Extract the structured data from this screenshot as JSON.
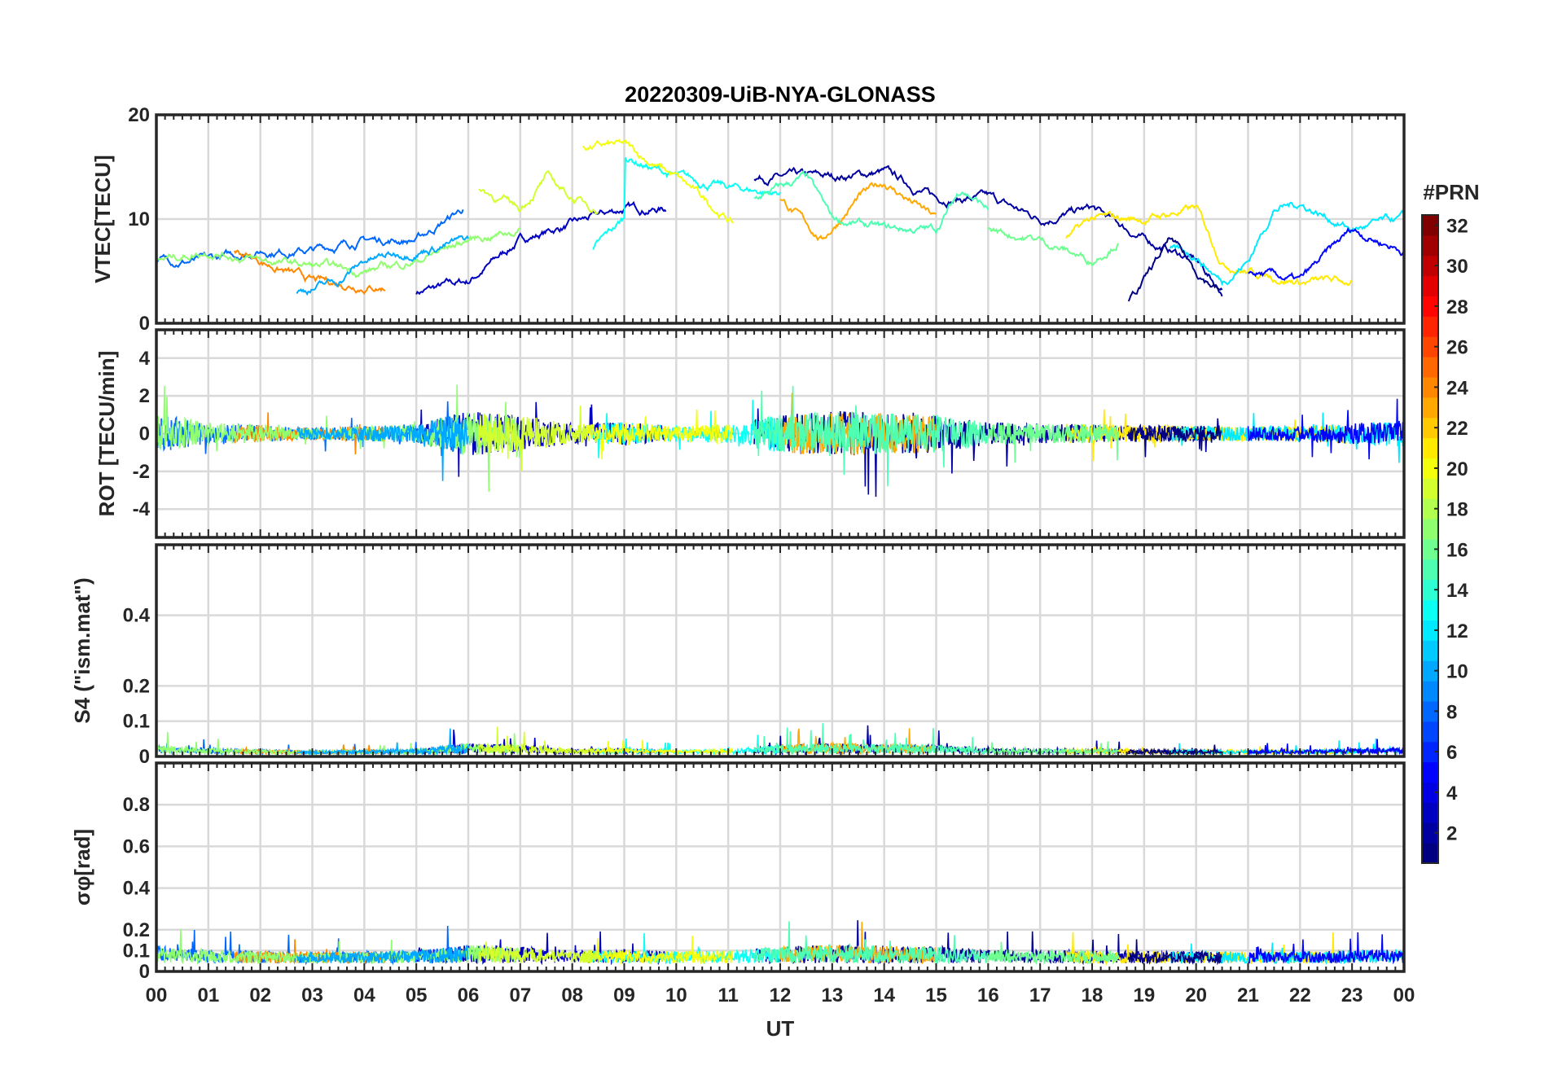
{
  "chart_data": {
    "type": "line",
    "title": "20220309-UiB-NYA-GLONASS",
    "xlabel": "UT",
    "xlim": [
      0,
      24
    ],
    "xtick_labels": [
      "00",
      "01",
      "02",
      "03",
      "04",
      "05",
      "06",
      "07",
      "08",
      "09",
      "10",
      "11",
      "12",
      "13",
      "14",
      "15",
      "16",
      "17",
      "18",
      "19",
      "20",
      "21",
      "22",
      "23",
      "00"
    ],
    "grid": true,
    "colorbar": {
      "label": "#PRN",
      "range": [
        1,
        32
      ],
      "colormap": "jet",
      "tick_labels": [
        "2",
        "4",
        "6",
        "8",
        "10",
        "12",
        "14",
        "16",
        "18",
        "20",
        "22",
        "24",
        "26",
        "28",
        "30",
        "32"
      ],
      "placement": "right"
    },
    "panels": [
      {
        "ylabel": "VTEC[TECU]",
        "ylim": [
          0,
          20
        ],
        "yticks": [
          0,
          10,
          20
        ],
        "ytick_labels": [
          "0",
          "10",
          "20"
        ]
      },
      {
        "ylabel": "ROT [TECU/min]",
        "ylim": [
          -5.5,
          5.5
        ],
        "yticks": [
          -4,
          -2,
          0,
          2,
          4
        ],
        "ytick_labels": [
          "-4",
          "-2",
          "0",
          "2",
          "4"
        ]
      },
      {
        "ylabel": "S4 (\"ism.mat\")",
        "ylim": [
          0,
          0.6
        ],
        "yticks": [
          0,
          0.1,
          0.2,
          0.4
        ],
        "ytick_labels": [
          "0",
          "0.1",
          "0.2",
          "0.4"
        ]
      },
      {
        "ylabel": "σφ[rad]",
        "ylim": [
          0,
          1
        ],
        "yticks": [
          0,
          0.1,
          0.2,
          0.4,
          0.6,
          0.8
        ],
        "ytick_labels": [
          "0",
          "0.1",
          "0.2",
          "0.4",
          "0.6",
          "0.8"
        ]
      }
    ],
    "series": [
      {
        "prn": 3,
        "vtec": [
          [
            5,
            3
          ],
          [
            6,
            4
          ],
          [
            7,
            8
          ],
          [
            8,
            9.5
          ],
          [
            9,
            11
          ],
          [
            9.8,
            11
          ]
        ]
      },
      {
        "prn": 2,
        "vtec": [
          [
            11.5,
            14
          ],
          [
            13,
            14
          ],
          [
            14,
            14.5
          ],
          [
            15,
            12
          ],
          [
            16,
            12
          ],
          [
            17,
            10
          ],
          [
            18,
            11
          ],
          [
            19,
            8
          ],
          [
            20,
            6
          ],
          [
            20.5,
            3
          ]
        ]
      },
      {
        "prn": 8,
        "vtec": [
          [
            0,
            6
          ],
          [
            1,
            6
          ],
          [
            2,
            7
          ],
          [
            3,
            7
          ],
          [
            4,
            8
          ],
          [
            5,
            8
          ],
          [
            5.9,
            11
          ]
        ]
      },
      {
        "prn": 13,
        "vtec": [
          [
            8.4,
            7
          ],
          [
            9,
            10
          ],
          [
            9,
            16
          ],
          [
            10,
            14
          ],
          [
            11,
            13
          ],
          [
            12,
            12.5
          ]
        ]
      },
      {
        "prn": 20,
        "vtec": [
          [
            8.2,
            17
          ],
          [
            9,
            17
          ],
          [
            10,
            14
          ],
          [
            11,
            10
          ],
          [
            11.1,
            9.5
          ]
        ]
      },
      {
        "prn": 24,
        "vtec": [
          [
            1.5,
            7
          ],
          [
            2.5,
            5
          ],
          [
            3,
            4
          ],
          [
            4.4,
            3.5
          ]
        ]
      },
      {
        "prn": 23,
        "vtec": [
          [
            12,
            12
          ],
          [
            12.8,
            8
          ],
          [
            13.5,
            12
          ],
          [
            14,
            13.5
          ],
          [
            15,
            10
          ]
        ]
      },
      {
        "prn": 15,
        "vtec": [
          [
            11.5,
            12
          ],
          [
            12.5,
            14
          ],
          [
            13,
            10
          ],
          [
            14,
            9
          ],
          [
            15,
            9
          ],
          [
            15.5,
            13
          ],
          [
            16,
            11
          ]
        ]
      },
      {
        "prn": 21,
        "vtec": [
          [
            17.5,
            8
          ],
          [
            18,
            10
          ],
          [
            19,
            10
          ],
          [
            20,
            11
          ],
          [
            20.5,
            6
          ],
          [
            21,
            5
          ],
          [
            22,
            4
          ],
          [
            23,
            4
          ]
        ]
      },
      {
        "prn": 12,
        "vtec": [
          [
            19.5,
            7
          ],
          [
            20,
            6.5
          ],
          [
            20.5,
            4
          ],
          [
            21,
            6
          ],
          [
            21.5,
            11
          ],
          [
            22,
            11.5
          ],
          [
            23,
            9
          ],
          [
            24,
            10
          ]
        ]
      },
      {
        "prn": 5,
        "vtec": [
          [
            21,
            5
          ],
          [
            22,
            4
          ],
          [
            23,
            9
          ],
          [
            24,
            7
          ]
        ]
      },
      {
        "prn": 17,
        "vtec": [
          [
            0,
            6
          ],
          [
            1,
            7
          ],
          [
            2,
            6
          ],
          [
            3,
            5.5
          ],
          [
            4,
            5
          ],
          [
            5,
            6
          ],
          [
            6,
            8
          ],
          [
            7,
            9
          ]
        ]
      },
      {
        "prn": 19,
        "vtec": [
          [
            6.2,
            13
          ],
          [
            7,
            11
          ],
          [
            7.5,
            14
          ],
          [
            8,
            12
          ],
          [
            8.5,
            11
          ]
        ]
      },
      {
        "prn": 10,
        "vtec": [
          [
            2.7,
            3
          ],
          [
            3.5,
            4
          ],
          [
            4,
            6
          ],
          [
            5,
            7
          ],
          [
            6,
            8
          ]
        ]
      },
      {
        "prn": 16,
        "vtec": [
          [
            16,
            9
          ],
          [
            17,
            8
          ],
          [
            18,
            6
          ],
          [
            18.5,
            8
          ]
        ]
      },
      {
        "prn": 1,
        "vtec": [
          [
            18.7,
            2
          ],
          [
            19,
            4
          ],
          [
            19.5,
            8
          ],
          [
            20,
            5
          ],
          [
            20.5,
            3
          ]
        ]
      }
    ],
    "activity_envelope": [
      [
        0,
        1.0
      ],
      [
        1,
        0.6
      ],
      [
        3,
        0.3
      ],
      [
        5,
        0.5
      ],
      [
        6,
        1.2
      ],
      [
        7,
        1.0
      ],
      [
        8,
        0.5
      ],
      [
        9,
        0.6
      ],
      [
        10,
        0.4
      ],
      [
        11,
        0.5
      ],
      [
        12,
        1.0
      ],
      [
        13,
        1.2
      ],
      [
        14,
        1.1
      ],
      [
        15,
        1.0
      ],
      [
        16,
        0.6
      ],
      [
        18,
        0.5
      ],
      [
        20,
        0.4
      ],
      [
        22,
        0.4
      ],
      [
        24,
        0.7
      ]
    ]
  }
}
